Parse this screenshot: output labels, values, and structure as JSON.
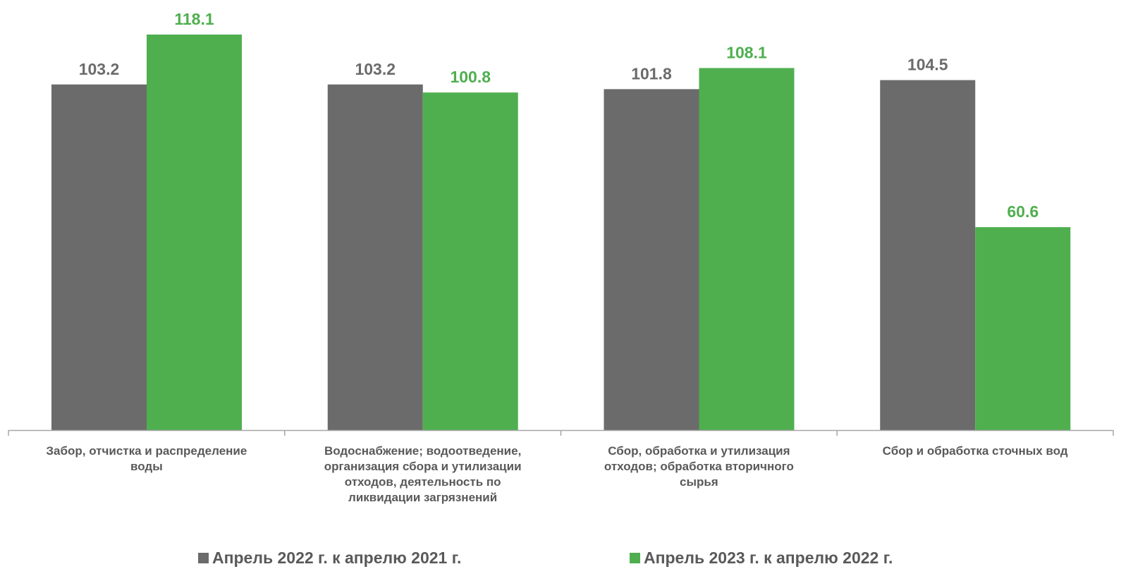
{
  "chart_data": {
    "type": "bar",
    "categories": [
      "Забор, отчистка и распределение воды",
      "Водоснабжение; водоотведение, организация сбора и утилизации отходов, деятельность по ликвидации загрязнений",
      "Сбор, обработка и утилизация отходов; обработка вторичного сырья",
      "Сбор и обработка сточных вод"
    ],
    "category_label_lines": [
      [
        "Забор, отчистка и распределение",
        "воды"
      ],
      [
        "Водоснабжение; водоотведение,",
        "организация сбора и утилизации",
        "отходов, деятельность по",
        "ликвидации загрязнений"
      ],
      [
        "Сбор, обработка и утилизация",
        "отходов; обработка вторичного",
        "сырья"
      ],
      [
        "Сбор и обработка сточных вод"
      ]
    ],
    "series": [
      {
        "name": "Апрель 2022 г. к апрелю 2021 г.",
        "values": [
          103.2,
          103.2,
          101.8,
          104.5
        ],
        "labels": [
          "103.2",
          "103.2",
          "101.8",
          "104.5"
        ],
        "color": "#6b6b6b",
        "label_color": "#6b6b6b"
      },
      {
        "name": "Апрель 2023 г. к апрелю 2022 г.",
        "values": [
          118.1,
          100.8,
          108.1,
          60.6
        ],
        "labels": [
          "118.1",
          "100.8",
          "108.1",
          "60.6"
        ],
        "color": "#4faf4f",
        "label_color": "#4faf4f"
      }
    ],
    "ylim": [
      0,
      118.1
    ],
    "grid": false,
    "legend_position": "bottom",
    "axis_color": "#a6a6a6",
    "category_label_color": "#595959"
  }
}
